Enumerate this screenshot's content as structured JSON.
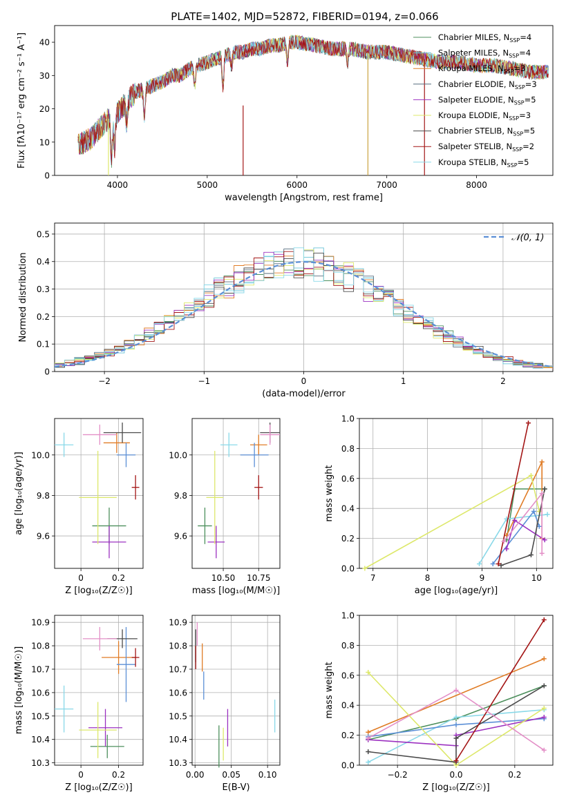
{
  "figure": {
    "title": "PLATE=1402, MJD=52872, FIBERID=0194, z=0.066"
  },
  "chart_data": [
    {
      "id": "spectrum",
      "type": "line",
      "xlabel": "wavelength [Angstrom, rest frame]",
      "ylabel": "Flux [fλ10⁻¹⁷ erg cm⁻² s⁻¹ A⁻¹]",
      "xlim": [
        3300,
        8850
      ],
      "ylim": [
        0,
        45
      ],
      "xticks": [
        4000,
        5000,
        6000,
        7000,
        8000
      ],
      "yticks": [
        0,
        10,
        20,
        30,
        40
      ],
      "legend_position": "top-right",
      "continuum": {
        "x": [
          3560,
          3700,
          3800,
          3900,
          4000,
          4100,
          4200,
          4300,
          4400,
          4500,
          4600,
          4700,
          4800,
          4900,
          5000,
          5100,
          5200,
          5300,
          5400,
          5500,
          5600,
          5700,
          5800,
          5900,
          6000,
          6200,
          6400,
          6600,
          6800,
          7000,
          7200,
          7400,
          7600,
          7800,
          8000,
          8200,
          8400,
          8600,
          8800
        ],
        "y": [
          9,
          11,
          14,
          17,
          19,
          22,
          25,
          26,
          27,
          28,
          30,
          30,
          32,
          33,
          34,
          35,
          36,
          37,
          37,
          38,
          38,
          39,
          39,
          40,
          40,
          39,
          38,
          38,
          37,
          37,
          36,
          35,
          34,
          34,
          33,
          33,
          32,
          31,
          31
        ]
      },
      "absorption_features": [
        [
          3934,
          12
        ],
        [
          3969,
          10
        ],
        [
          4102,
          6
        ],
        [
          4300,
          8
        ],
        [
          4861,
          5
        ],
        [
          5175,
          9
        ],
        [
          5270,
          4
        ],
        [
          5893,
          6
        ],
        [
          6563,
          4
        ]
      ],
      "series": [
        {
          "name": "Chabrier MILES, N",
          "sub": "SSP",
          "suffix": "=4",
          "color": "#4c8f5c"
        },
        {
          "name": "Salpeter MILES, N",
          "sub": "SSP",
          "suffix": "=4",
          "color": "#66c2d6"
        },
        {
          "name": "Kroupa MILES, N",
          "sub": "SSP",
          "suffix": "=3",
          "color": "#e07b24"
        },
        {
          "name": "Chabrier ELODIE, N",
          "sub": "SSP",
          "suffix": "=3",
          "color": "#556b7d"
        },
        {
          "name": "Salpeter ELODIE, N",
          "sub": "SSP",
          "suffix": "=5",
          "color": "#9b30c0"
        },
        {
          "name": "Kroupa ELODIE, N",
          "sub": "SSP",
          "suffix": "=3",
          "color": "#dde86a"
        },
        {
          "name": "Chabrier STELIB, N",
          "sub": "SSP",
          "suffix": "=5",
          "color": "#4a4a4a"
        },
        {
          "name": "Salpeter STELIB, N",
          "sub": "SSP",
          "suffix": "=2",
          "color": "#a31515"
        },
        {
          "name": "Kroupa STELIB, N",
          "sub": "SSP",
          "suffix": "=5",
          "color": "#88d8e8"
        }
      ],
      "vertical_lines": [
        {
          "x": 3900,
          "y0": 0,
          "y1": 17,
          "color": "#dde86a"
        },
        {
          "x": 5400,
          "y0": 0,
          "y1": 21,
          "color": "#a31515"
        },
        {
          "x": 6790,
          "y0": 0,
          "y1": 37,
          "color": "#c9a441"
        },
        {
          "x": 7420,
          "y0": 0,
          "y1": 34,
          "color": "#a31515"
        }
      ]
    },
    {
      "id": "residuals",
      "type": "histogram",
      "xlabel": "(data-model)/error",
      "ylabel": "Normed distribution",
      "xlim": [
        -2.5,
        2.5
      ],
      "ylim": [
        0,
        0.54
      ],
      "xticks": [
        -2,
        -1,
        0,
        1,
        2
      ],
      "yticks": [
        0.0,
        0.1,
        0.2,
        0.3,
        0.4,
        0.5
      ],
      "grid": true,
      "bin_width": 0.1,
      "reference_curve": {
        "label": "𝒩(0, 1)",
        "mean": 0,
        "sigma": 1,
        "color": "#5b8fd6",
        "legend_position": "top-right"
      }
    },
    {
      "id": "age_vs_Z",
      "type": "errorbar",
      "xlabel": "Z [log₁₀(Z/Z☉)]",
      "ylabel": "age  [log₁₀(age/yr)]",
      "xlim": [
        -0.14,
        0.33
      ],
      "ylim": [
        9.44,
        10.18
      ],
      "xticks": [
        0.0,
        0.2
      ],
      "yticks": [
        9.6,
        9.8,
        10.0
      ],
      "grid": true,
      "points": [
        {
          "x": 0.15,
          "y": 9.65,
          "xerr": 0.09,
          "yerr": 0.09,
          "color": "#4c8f5c"
        },
        {
          "x": -0.09,
          "y": 10.05,
          "xerr": 0.05,
          "yerr": 0.06,
          "color": "#88d8e8"
        },
        {
          "x": 0.19,
          "y": 10.06,
          "xerr": 0.07,
          "yerr": 0.05,
          "color": "#e07b24"
        },
        {
          "x": 0.24,
          "y": 10.0,
          "xerr": 0.05,
          "yerr": 0.06,
          "color": "#5b8fd6"
        },
        {
          "x": 0.15,
          "y": 9.57,
          "xerr": 0.09,
          "yerr": 0.08,
          "color": "#9b30c0"
        },
        {
          "x": 0.09,
          "y": 9.79,
          "xerr": 0.1,
          "yerr": 0.23,
          "color": "#dde86a"
        },
        {
          "x": 0.22,
          "y": 10.11,
          "xerr": 0.1,
          "yerr": 0.05,
          "color": "#4a4a4a"
        },
        {
          "x": 0.29,
          "y": 9.84,
          "xerr": 0.02,
          "yerr": 0.06,
          "color": "#a31515"
        },
        {
          "x": 0.1,
          "y": 10.1,
          "xerr": 0.09,
          "yerr": 0.05,
          "color": "#e38fc7"
        }
      ]
    },
    {
      "id": "age_vs_mass",
      "type": "errorbar",
      "xlabel": "mass [log₁₀(M/M☉)]",
      "ylabel": "",
      "xlim": [
        10.28,
        10.9
      ],
      "ylim": [
        9.44,
        10.18
      ],
      "xticks": [
        10.5,
        10.75
      ],
      "xtick_labels": [
        "10.50",
        "10.75"
      ],
      "yticks": [
        9.6,
        9.8,
        10.0
      ],
      "grid": true,
      "points": [
        {
          "x": 10.37,
          "y": 9.65,
          "xerr": 0.05,
          "yerr": 0.09,
          "color": "#4c8f5c"
        },
        {
          "x": 10.54,
          "y": 10.05,
          "xerr": 0.06,
          "yerr": 0.06,
          "color": "#88d8e8"
        },
        {
          "x": 10.75,
          "y": 10.05,
          "xerr": 0.06,
          "yerr": 0.05,
          "color": "#e07b24"
        },
        {
          "x": 10.72,
          "y": 10.0,
          "xerr": 0.1,
          "yerr": 0.06,
          "color": "#5b8fd6"
        },
        {
          "x": 10.45,
          "y": 9.57,
          "xerr": 0.06,
          "yerr": 0.08,
          "color": "#9b30c0"
        },
        {
          "x": 10.44,
          "y": 9.79,
          "xerr": 0.06,
          "yerr": 0.23,
          "color": "#dde86a"
        },
        {
          "x": 10.83,
          "y": 10.11,
          "xerr": 0.07,
          "yerr": 0.05,
          "color": "#4a4a4a"
        },
        {
          "x": 10.75,
          "y": 9.84,
          "xerr": 0.03,
          "yerr": 0.06,
          "color": "#a31515"
        },
        {
          "x": 10.83,
          "y": 10.1,
          "xerr": 0.07,
          "yerr": 0.05,
          "color": "#e38fc7"
        }
      ]
    },
    {
      "id": "weight_vs_age",
      "type": "line",
      "xlabel": "age  [log₁₀(age/yr)]",
      "ylabel": "mass weight",
      "xlim": [
        6.75,
        10.3
      ],
      "ylim": [
        0,
        1.0
      ],
      "xticks": [
        7,
        8,
        9,
        10
      ],
      "yticks": [
        0.0,
        0.2,
        0.4,
        0.6,
        0.8,
        1.0
      ],
      "grid": true,
      "series": [
        {
          "color": "#4c8f5c",
          "x": [
            9.45,
            9.6,
            10.15
          ],
          "y": [
            0.19,
            0.53,
            0.53
          ]
        },
        {
          "color": "#88d8e8",
          "x": [
            8.95,
            9.45,
            10.2
          ],
          "y": [
            0.03,
            0.33,
            0.36
          ]
        },
        {
          "color": "#e07b24",
          "x": [
            9.45,
            10.1,
            10.1
          ],
          "y": [
            0.22,
            0.71,
            0.2
          ]
        },
        {
          "color": "#5b8fd6",
          "x": [
            9.2,
            9.95,
            10.05
          ],
          "y": [
            0.03,
            0.38,
            0.28
          ]
        },
        {
          "color": "#9b30c0",
          "x": [
            9.45,
            9.6,
            10.15
          ],
          "y": [
            0.13,
            0.32,
            0.19
          ]
        },
        {
          "color": "#dde86a",
          "x": [
            6.85,
            9.9,
            10.05
          ],
          "y": [
            0.0,
            0.62,
            0.38
          ]
        },
        {
          "color": "#4a4a4a",
          "x": [
            9.35,
            9.9,
            10.15
          ],
          "y": [
            0.02,
            0.09,
            0.53
          ]
        },
        {
          "color": "#a31515",
          "x": [
            9.3,
            9.85
          ],
          "y": [
            0.03,
            0.97
          ]
        },
        {
          "color": "#e38fc7",
          "x": [
            9.4,
            10.1,
            10.1
          ],
          "y": [
            0.18,
            0.5,
            0.1
          ]
        }
      ]
    },
    {
      "id": "mass_vs_Z",
      "type": "errorbar",
      "xlabel": "Z [log₁₀(Z/Z☉)]",
      "ylabel": "mass [log₁₀(M/M☉)]",
      "xlim": [
        -0.14,
        0.33
      ],
      "ylim": [
        10.29,
        10.93
      ],
      "xticks": [
        0.0,
        0.2
      ],
      "yticks": [
        10.3,
        10.4,
        10.5,
        10.6,
        10.7,
        10.8,
        10.9
      ],
      "grid": true,
      "points": [
        {
          "x": 0.14,
          "y": 10.37,
          "xerr": 0.09,
          "yerr": 0.05,
          "color": "#4c8f5c"
        },
        {
          "x": -0.09,
          "y": 10.53,
          "xerr": 0.05,
          "yerr": 0.1,
          "color": "#88d8e8"
        },
        {
          "x": 0.2,
          "y": 10.75,
          "xerr": 0.09,
          "yerr": 0.07,
          "color": "#e07b24"
        },
        {
          "x": 0.24,
          "y": 10.72,
          "xerr": 0.05,
          "yerr": 0.16,
          "color": "#5b8fd6"
        },
        {
          "x": 0.13,
          "y": 10.45,
          "xerr": 0.09,
          "yerr": 0.08,
          "color": "#9b30c0"
        },
        {
          "x": 0.09,
          "y": 10.44,
          "xerr": 0.1,
          "yerr": 0.12,
          "color": "#dde86a"
        },
        {
          "x": 0.22,
          "y": 10.83,
          "xerr": 0.08,
          "yerr": 0.04,
          "color": "#4a4a4a"
        },
        {
          "x": 0.29,
          "y": 10.75,
          "xerr": 0.02,
          "yerr": 0.04,
          "color": "#a31515"
        },
        {
          "x": 0.1,
          "y": 10.83,
          "xerr": 0.09,
          "yerr": 0.05,
          "color": "#e38fc7"
        }
      ]
    },
    {
      "id": "mass_vs_ebv",
      "type": "errorbar",
      "xlabel": "E(B-V)",
      "ylabel": "",
      "xlim": [
        -0.004,
        0.117
      ],
      "ylim": [
        10.29,
        10.93
      ],
      "xticks": [
        0.0,
        0.05,
        0.1
      ],
      "xtick_labels": [
        "0.00",
        "0.05",
        "0.10"
      ],
      "yticks": [
        10.3,
        10.4,
        10.5,
        10.6,
        10.7,
        10.8,
        10.9
      ],
      "grid": true,
      "points": [
        {
          "x": 0.033,
          "y": 10.37,
          "xerr": 0,
          "yerr": 0.09,
          "color": "#4c8f5c"
        },
        {
          "x": 0.11,
          "y": 10.5,
          "xerr": 0,
          "yerr": 0.07,
          "color": "#88d8e8"
        },
        {
          "x": 0.01,
          "y": 10.75,
          "xerr": 0,
          "yerr": 0.06,
          "color": "#e07b24"
        },
        {
          "x": 0.012,
          "y": 10.63,
          "xerr": 0,
          "yerr": 0.06,
          "color": "#5b8fd6"
        },
        {
          "x": 0.045,
          "y": 10.45,
          "xerr": 0,
          "yerr": 0.08,
          "color": "#9b30c0"
        },
        {
          "x": 0.039,
          "y": 10.38,
          "xerr": 0,
          "yerr": 0.07,
          "color": "#dde86a"
        },
        {
          "x": 0.001,
          "y": 10.8,
          "xerr": 0,
          "yerr": 0.07,
          "color": "#4a4a4a"
        },
        {
          "x": 0.001,
          "y": 10.75,
          "xerr": 0,
          "yerr": 0.05,
          "color": "#a31515"
        },
        {
          "x": 0.003,
          "y": 10.85,
          "xerr": 0,
          "yerr": 0.05,
          "color": "#e38fc7"
        }
      ]
    },
    {
      "id": "weight_vs_Z",
      "type": "line",
      "xlabel": "Z [log₁₀(Z/Z☉)]",
      "ylabel": "mass weight",
      "xlim": [
        -0.33,
        0.33
      ],
      "ylim": [
        0,
        1.0
      ],
      "xticks": [
        -0.2,
        0.0,
        0.2
      ],
      "xtick_labels": [
        "−0.2",
        "0.0",
        "0.2"
      ],
      "yticks": [
        0.0,
        0.2,
        0.4,
        0.6,
        0.8,
        1.0
      ],
      "grid": true,
      "series": [
        {
          "color": "#4c8f5c",
          "x": [
            -0.3,
            0.0,
            0.3
          ],
          "y": [
            0.17,
            0.31,
            0.53
          ]
        },
        {
          "color": "#88d8e8",
          "x": [
            -0.3,
            0.0,
            0.3
          ],
          "y": [
            0.02,
            0.32,
            0.37
          ]
        },
        {
          "color": "#e07b24",
          "x": [
            -0.3,
            0.3
          ],
          "y": [
            0.22,
            0.71
          ]
        },
        {
          "color": "#5b8fd6",
          "x": [
            -0.3,
            0.0,
            0.3
          ],
          "y": [
            0.19,
            0.27,
            0.31
          ]
        },
        {
          "color": "#9b30c0",
          "x": [
            -0.3,
            0.0,
            0.0,
            0.3
          ],
          "y": [
            0.17,
            0.13,
            0.2,
            0.32
          ]
        },
        {
          "color": "#dde86a",
          "x": [
            -0.3,
            0.0,
            0.3
          ],
          "y": [
            0.62,
            0.0,
            0.38
          ]
        },
        {
          "color": "#4a4a4a",
          "x": [
            -0.3,
            0.0,
            0.0,
            0.3
          ],
          "y": [
            0.09,
            0.02,
            0.18,
            0.53
          ]
        },
        {
          "color": "#a31515",
          "x": [
            0.0,
            0.3
          ],
          "y": [
            0.03,
            0.97
          ]
        },
        {
          "color": "#e38fc7",
          "x": [
            -0.3,
            0.0,
            0.3
          ],
          "y": [
            0.18,
            0.5,
            0.1
          ]
        }
      ]
    }
  ]
}
